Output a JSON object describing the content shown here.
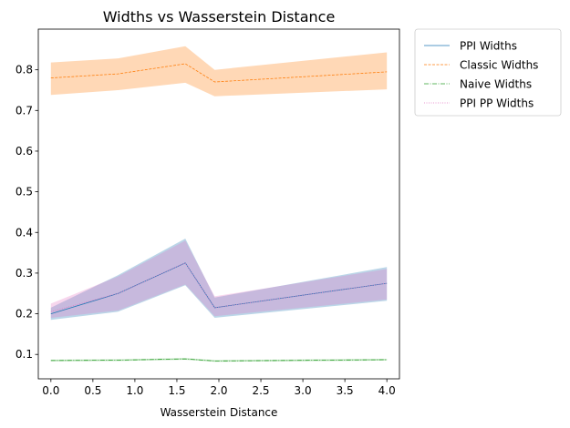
{
  "chart_data": {
    "type": "line",
    "title": "Widths vs Wasserstein Distance",
    "xlabel": "Wasserstein Distance",
    "ylabel": "",
    "xlim": [
      -0.15,
      4.15
    ],
    "ylim": [
      0.04,
      0.9
    ],
    "xticks": [
      0.0,
      0.5,
      1.0,
      1.5,
      2.0,
      2.5,
      3.0,
      3.5,
      4.0
    ],
    "xtick_labels": [
      "0.0",
      "0.5",
      "1.0",
      "1.5",
      "2.0",
      "2.5",
      "3.0",
      "3.5",
      "4.0"
    ],
    "yticks": [
      0.1,
      0.2,
      0.3,
      0.4,
      0.5,
      0.6,
      0.7,
      0.8
    ],
    "ytick_labels": [
      "0.1",
      "0.2",
      "0.3",
      "0.4",
      "0.5",
      "0.6",
      "0.7",
      "0.8"
    ],
    "grid": false,
    "legend_position": "outside-top-right",
    "series": [
      {
        "name": "PPI Widths",
        "color": "#1f77b4",
        "dash": "solid",
        "x": [
          0.0,
          0.8,
          1.6,
          1.95,
          4.0
        ],
        "y": [
          0.2,
          0.25,
          0.325,
          0.215,
          0.275
        ],
        "lower": [
          0.185,
          0.205,
          0.27,
          0.19,
          0.232
        ],
        "upper": [
          0.215,
          0.295,
          0.385,
          0.24,
          0.315
        ]
      },
      {
        "name": "Classic Widths",
        "color": "#ff7f0e",
        "dash": "dashed",
        "x": [
          0.0,
          0.8,
          1.6,
          1.95,
          4.0
        ],
        "y": [
          0.78,
          0.79,
          0.815,
          0.77,
          0.795
        ],
        "lower": [
          0.738,
          0.75,
          0.768,
          0.735,
          0.752
        ],
        "upper": [
          0.818,
          0.828,
          0.858,
          0.8,
          0.843
        ]
      },
      {
        "name": "Naive Widths",
        "color": "#2ca02c",
        "dash": "dashdot",
        "x": [
          0.0,
          0.8,
          1.6,
          1.95,
          4.0
        ],
        "y": [
          0.085,
          0.086,
          0.089,
          0.084,
          0.087
        ],
        "lower": [
          0.083,
          0.084,
          0.087,
          0.082,
          0.085
        ],
        "upper": [
          0.087,
          0.088,
          0.091,
          0.086,
          0.089
        ]
      },
      {
        "name": "PPI PP Widths",
        "color": "#e377c2",
        "dash": "dotted",
        "x": [
          0.0,
          0.8,
          1.6,
          1.95,
          4.0
        ],
        "y": [
          0.205,
          0.25,
          0.325,
          0.215,
          0.275
        ],
        "lower": [
          0.19,
          0.208,
          0.272,
          0.194,
          0.235
        ],
        "upper": [
          0.225,
          0.292,
          0.38,
          0.243,
          0.31
        ]
      }
    ]
  }
}
